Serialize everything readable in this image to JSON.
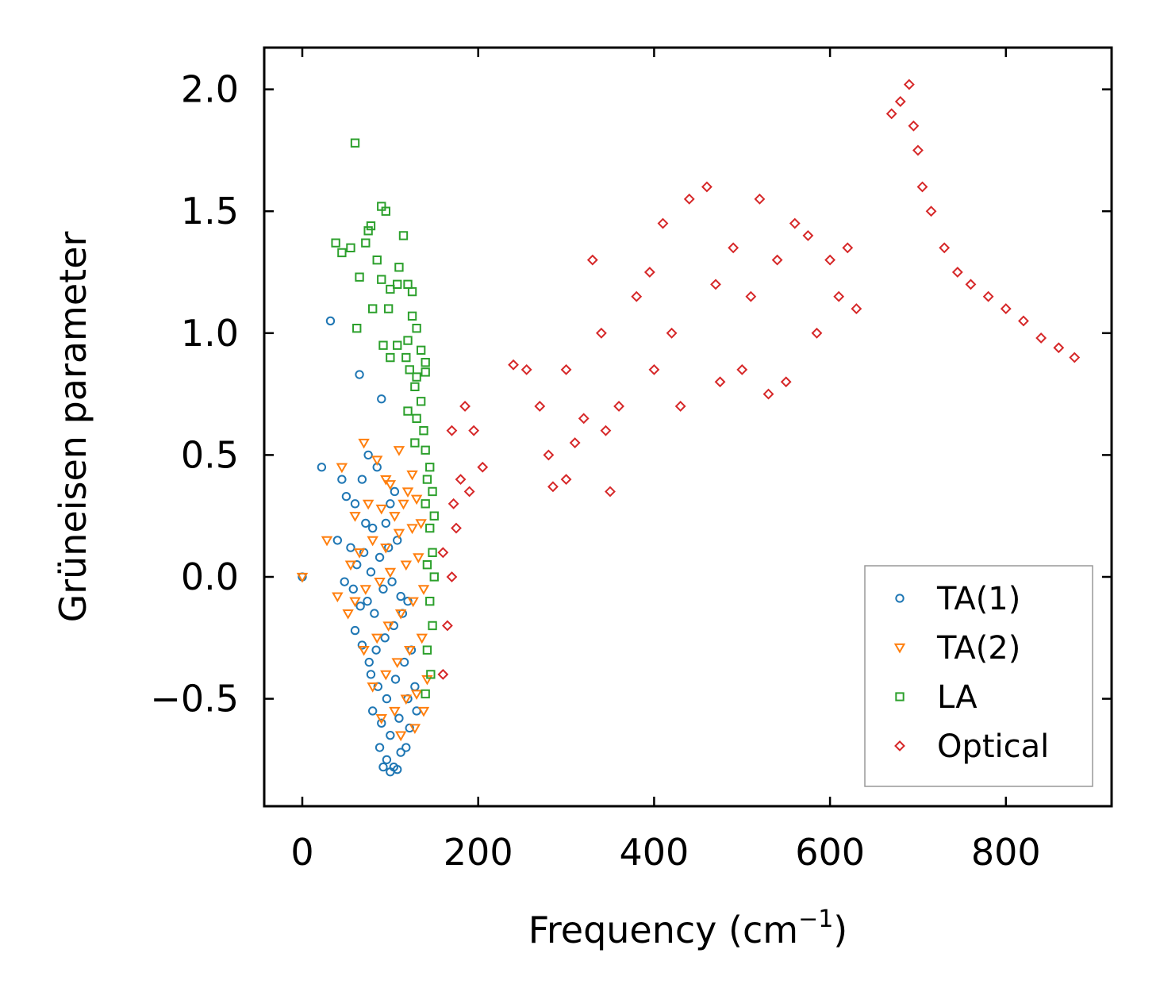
{
  "chart_data": {
    "type": "scatter",
    "title": "",
    "xlabel": "Frequency (cm",
    "xlabel_sup": "−1",
    "xlabel_suffix": ")",
    "ylabel": "Grüneisen parameter",
    "xlim": [
      -45,
      920
    ],
    "ylim": [
      -0.92,
      2.18
    ],
    "xticks": [
      0,
      200,
      400,
      600,
      800
    ],
    "xtick_labels": [
      "0",
      "200",
      "400",
      "600",
      "800"
    ],
    "yticks": [
      -0.5,
      0.0,
      0.5,
      1.0,
      1.5,
      2.0
    ],
    "ytick_labels": [
      "−0.5",
      "0.0",
      "0.5",
      "1.0",
      "1.5",
      "2.0"
    ],
    "grid": false,
    "legend_position": "bottom-right",
    "series": [
      {
        "name": "TA(1)",
        "marker": "circle",
        "color": "#1f77b4",
        "points": [
          [
            0,
            0
          ],
          [
            22,
            0.45
          ],
          [
            32,
            1.05
          ],
          [
            65,
            0.83
          ],
          [
            90,
            0.73
          ],
          [
            45,
            0.4
          ],
          [
            68,
            0.4
          ],
          [
            75,
            0.5
          ],
          [
            85,
            0.45
          ],
          [
            50,
            0.33
          ],
          [
            60,
            0.3
          ],
          [
            72,
            0.22
          ],
          [
            80,
            0.2
          ],
          [
            95,
            0.22
          ],
          [
            100,
            0.3
          ],
          [
            105,
            0.35
          ],
          [
            40,
            0.15
          ],
          [
            55,
            0.12
          ],
          [
            62,
            0.05
          ],
          [
            70,
            0.1
          ],
          [
            78,
            0.02
          ],
          [
            88,
            0.08
          ],
          [
            98,
            0.12
          ],
          [
            108,
            0.15
          ],
          [
            48,
            -0.02
          ],
          [
            58,
            -0.05
          ],
          [
            66,
            -0.12
          ],
          [
            74,
            -0.1
          ],
          [
            82,
            -0.15
          ],
          [
            92,
            -0.05
          ],
          [
            102,
            -0.02
          ],
          [
            112,
            -0.08
          ],
          [
            60,
            -0.22
          ],
          [
            68,
            -0.28
          ],
          [
            76,
            -0.35
          ],
          [
            84,
            -0.3
          ],
          [
            94,
            -0.25
          ],
          [
            104,
            -0.2
          ],
          [
            114,
            -0.15
          ],
          [
            120,
            -0.1
          ],
          [
            78,
            -0.4
          ],
          [
            86,
            -0.45
          ],
          [
            96,
            -0.5
          ],
          [
            106,
            -0.42
          ],
          [
            116,
            -0.35
          ],
          [
            124,
            -0.3
          ],
          [
            80,
            -0.55
          ],
          [
            90,
            -0.6
          ],
          [
            100,
            -0.65
          ],
          [
            110,
            -0.58
          ],
          [
            120,
            -0.5
          ],
          [
            128,
            -0.45
          ],
          [
            88,
            -0.7
          ],
          [
            96,
            -0.75
          ],
          [
            104,
            -0.78
          ],
          [
            112,
            -0.72
          ],
          [
            122,
            -0.62
          ],
          [
            130,
            -0.55
          ],
          [
            92,
            -0.78
          ],
          [
            100,
            -0.8
          ],
          [
            108,
            -0.79
          ],
          [
            118,
            -0.7
          ]
        ]
      },
      {
        "name": "TA(2)",
        "marker": "triangle",
        "color": "#ff7f0e",
        "points": [
          [
            0,
            0
          ],
          [
            28,
            0.15
          ],
          [
            40,
            -0.08
          ],
          [
            45,
            0.45
          ],
          [
            52,
            -0.15
          ],
          [
            70,
            0.55
          ],
          [
            85,
            0.48
          ],
          [
            110,
            0.52
          ],
          [
            95,
            0.4
          ],
          [
            100,
            0.38
          ],
          [
            120,
            0.35
          ],
          [
            125,
            0.42
          ],
          [
            60,
            0.25
          ],
          [
            75,
            0.3
          ],
          [
            90,
            0.28
          ],
          [
            105,
            0.25
          ],
          [
            115,
            0.3
          ],
          [
            130,
            0.32
          ],
          [
            55,
            0.05
          ],
          [
            65,
            0.1
          ],
          [
            80,
            0.15
          ],
          [
            95,
            0.12
          ],
          [
            110,
            0.18
          ],
          [
            125,
            0.2
          ],
          [
            135,
            0.22
          ],
          [
            60,
            -0.1
          ],
          [
            72,
            -0.05
          ],
          [
            88,
            -0.02
          ],
          [
            100,
            0.02
          ],
          [
            118,
            0.05
          ],
          [
            132,
            0.08
          ],
          [
            70,
            -0.3
          ],
          [
            85,
            -0.25
          ],
          [
            98,
            -0.2
          ],
          [
            112,
            -0.15
          ],
          [
            126,
            -0.1
          ],
          [
            138,
            -0.05
          ],
          [
            80,
            -0.45
          ],
          [
            95,
            -0.4
          ],
          [
            108,
            -0.35
          ],
          [
            122,
            -0.3
          ],
          [
            136,
            -0.25
          ],
          [
            90,
            -0.58
          ],
          [
            105,
            -0.55
          ],
          [
            118,
            -0.5
          ],
          [
            130,
            -0.48
          ],
          [
            142,
            -0.42
          ],
          [
            112,
            -0.65
          ],
          [
            128,
            -0.62
          ],
          [
            138,
            -0.55
          ]
        ]
      },
      {
        "name": "LA",
        "marker": "square",
        "color": "#2ca02c",
        "points": [
          [
            60,
            1.78
          ],
          [
            90,
            1.52
          ],
          [
            95,
            1.5
          ],
          [
            115,
            1.4
          ],
          [
            38,
            1.37
          ],
          [
            45,
            1.33
          ],
          [
            55,
            1.35
          ],
          [
            72,
            1.37
          ],
          [
            78,
            1.44
          ],
          [
            75,
            1.42
          ],
          [
            85,
            1.3
          ],
          [
            110,
            1.27
          ],
          [
            120,
            1.2
          ],
          [
            108,
            1.2
          ],
          [
            65,
            1.23
          ],
          [
            90,
            1.22
          ],
          [
            100,
            1.18
          ],
          [
            125,
            1.17
          ],
          [
            80,
            1.1
          ],
          [
            98,
            1.1
          ],
          [
            125,
            1.07
          ],
          [
            130,
            1.02
          ],
          [
            62,
            1.02
          ],
          [
            92,
            0.95
          ],
          [
            108,
            0.95
          ],
          [
            120,
            0.97
          ],
          [
            135,
            0.93
          ],
          [
            100,
            0.9
          ],
          [
            118,
            0.9
          ],
          [
            140,
            0.88
          ],
          [
            122,
            0.85
          ],
          [
            130,
            0.82
          ],
          [
            140,
            0.84
          ],
          [
            128,
            0.78
          ],
          [
            135,
            0.72
          ],
          [
            120,
            0.68
          ],
          [
            130,
            0.65
          ],
          [
            138,
            0.6
          ],
          [
            128,
            0.55
          ],
          [
            140,
            0.52
          ],
          [
            145,
            0.45
          ],
          [
            142,
            0.4
          ],
          [
            148,
            0.35
          ],
          [
            140,
            0.3
          ],
          [
            150,
            0.25
          ],
          [
            145,
            0.2
          ],
          [
            148,
            0.1
          ],
          [
            142,
            0.05
          ],
          [
            150,
            0.0
          ],
          [
            145,
            -0.1
          ],
          [
            148,
            -0.2
          ],
          [
            142,
            -0.3
          ],
          [
            146,
            -0.4
          ],
          [
            140,
            -0.48
          ]
        ]
      },
      {
        "name": "Optical",
        "marker": "diamond",
        "color": "#d62728",
        "points": [
          [
            160,
            -0.4
          ],
          [
            165,
            -0.2
          ],
          [
            170,
            0.0
          ],
          [
            175,
            0.2
          ],
          [
            180,
            0.4
          ],
          [
            170,
            0.6
          ],
          [
            185,
            0.7
          ],
          [
            195,
            0.6
          ],
          [
            205,
            0.45
          ],
          [
            160,
            0.1
          ],
          [
            172,
            0.3
          ],
          [
            190,
            0.35
          ],
          [
            240,
            0.87
          ],
          [
            255,
            0.85
          ],
          [
            270,
            0.7
          ],
          [
            280,
            0.5
          ],
          [
            285,
            0.37
          ],
          [
            300,
            0.4
          ],
          [
            310,
            0.55
          ],
          [
            320,
            0.65
          ],
          [
            300,
            0.85
          ],
          [
            330,
            1.3
          ],
          [
            340,
            1.0
          ],
          [
            345,
            0.6
          ],
          [
            350,
            0.35
          ],
          [
            360,
            0.7
          ],
          [
            380,
            1.15
          ],
          [
            395,
            1.25
          ],
          [
            400,
            0.85
          ],
          [
            410,
            1.45
          ],
          [
            420,
            1.0
          ],
          [
            430,
            0.7
          ],
          [
            440,
            1.55
          ],
          [
            460,
            1.6
          ],
          [
            470,
            1.2
          ],
          [
            475,
            0.8
          ],
          [
            490,
            1.35
          ],
          [
            500,
            0.85
          ],
          [
            510,
            1.15
          ],
          [
            520,
            1.55
          ],
          [
            530,
            0.75
          ],
          [
            540,
            1.3
          ],
          [
            550,
            0.8
          ],
          [
            560,
            1.45
          ],
          [
            575,
            1.4
          ],
          [
            585,
            1.0
          ],
          [
            600,
            1.3
          ],
          [
            610,
            1.15
          ],
          [
            620,
            1.35
          ],
          [
            630,
            1.1
          ],
          [
            670,
            1.9
          ],
          [
            680,
            1.95
          ],
          [
            690,
            2.02
          ],
          [
            695,
            1.85
          ],
          [
            700,
            1.75
          ],
          [
            705,
            1.6
          ],
          [
            715,
            1.5
          ],
          [
            730,
            1.35
          ],
          [
            745,
            1.25
          ],
          [
            760,
            1.2
          ],
          [
            780,
            1.15
          ],
          [
            800,
            1.1
          ],
          [
            820,
            1.05
          ],
          [
            840,
            0.98
          ],
          [
            860,
            0.94
          ],
          [
            878,
            0.9
          ]
        ]
      }
    ]
  }
}
